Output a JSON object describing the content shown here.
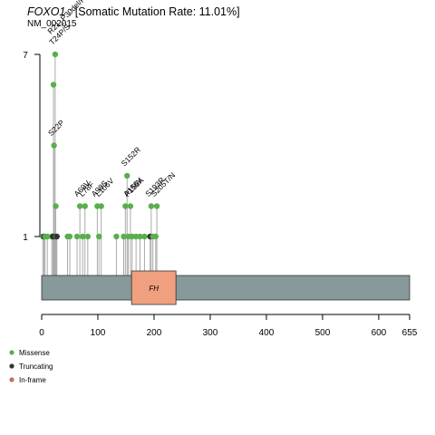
{
  "title": {
    "gene": "FOXO1",
    "rest": " : [Somatic Mutation Rate: 11.01%]",
    "transcript": "NM_002015"
  },
  "legend": [
    {
      "label": "Missense",
      "color": "#5aae4e"
    },
    {
      "label": "Truncating",
      "color": "#333333"
    },
    {
      "label": "In-frame",
      "color": "#c0725a"
    }
  ],
  "chart_data": {
    "type": "lollipop",
    "protein_length": 655,
    "xlim": [
      0,
      655
    ],
    "x_ticks": [
      0,
      100,
      200,
      300,
      400,
      500,
      600,
      655
    ],
    "y_ticks": [
      1,
      7
    ],
    "ylim": [
      0,
      7
    ],
    "domains": [
      {
        "name": "FH",
        "start": 160,
        "end": 239,
        "color": "#f0a07e"
      }
    ],
    "backbone_color": "#87999a",
    "mutations": [
      {
        "pos": 2,
        "count": 1,
        "type": "missense"
      },
      {
        "pos": 4,
        "count": 1,
        "type": "truncating"
      },
      {
        "pos": 6,
        "count": 1,
        "type": "missense"
      },
      {
        "pos": 10,
        "count": 1,
        "type": "missense"
      },
      {
        "pos": 18,
        "count": 1,
        "type": "missense"
      },
      {
        "pos": 20,
        "count": 1,
        "type": "truncating"
      },
      {
        "pos": 21,
        "count": 6,
        "type": "missense"
      },
      {
        "pos": 22,
        "count": 4,
        "type": "missense",
        "label": "S22P"
      },
      {
        "pos": 23,
        "count": 1,
        "type": "truncating"
      },
      {
        "pos": 24,
        "count": 7,
        "type": "missense",
        "label": "T24P/S"
      },
      {
        "pos": 25,
        "count": 2,
        "type": "missense"
      },
      {
        "pos": 26,
        "count": 1,
        "type": "missense"
      },
      {
        "pos": 27,
        "count": 1,
        "type": "truncating"
      },
      {
        "pos": 46,
        "count": 1,
        "type": "missense"
      },
      {
        "pos": 50,
        "count": 1,
        "type": "missense"
      },
      {
        "pos": 63,
        "count": 1,
        "type": "missense"
      },
      {
        "pos": 68,
        "count": 2,
        "type": "missense",
        "label": "A69V"
      },
      {
        "pos": 73,
        "count": 1,
        "type": "missense"
      },
      {
        "pos": 77,
        "count": 2,
        "type": "missense",
        "label": "L78F"
      },
      {
        "pos": 82,
        "count": 1,
        "type": "missense"
      },
      {
        "pos": 99,
        "count": 2,
        "type": "missense",
        "label": "A98S"
      },
      {
        "pos": 102,
        "count": 1,
        "type": "missense"
      },
      {
        "pos": 106,
        "count": 2,
        "type": "missense",
        "label": "L106V"
      },
      {
        "pos": 133,
        "count": 1,
        "type": "missense"
      },
      {
        "pos": 146,
        "count": 1,
        "type": "missense"
      },
      {
        "pos": 149,
        "count": 2,
        "type": "missense"
      },
      {
        "pos": 152,
        "count": 3,
        "type": "missense",
        "label": "S152R"
      },
      {
        "pos": 154,
        "count": 1,
        "type": "missense"
      },
      {
        "pos": 158,
        "count": 2,
        "type": "missense",
        "label": "P159A"
      },
      {
        "pos": 161,
        "count": 1,
        "type": "missense"
      },
      {
        "pos": 168,
        "count": 1,
        "type": "missense"
      },
      {
        "pos": 175,
        "count": 1,
        "type": "missense"
      },
      {
        "pos": 183,
        "count": 1,
        "type": "missense"
      },
      {
        "pos": 193,
        "count": 1,
        "type": "truncating"
      },
      {
        "pos": 195,
        "count": 2,
        "type": "missense",
        "label": "S193R"
      },
      {
        "pos": 198,
        "count": 1,
        "type": "missense"
      },
      {
        "pos": 203,
        "count": 1,
        "type": "missense"
      },
      {
        "pos": 205,
        "count": 2,
        "type": "missense",
        "label": "S205T/N"
      }
    ],
    "extra_labels": [
      {
        "text": "R21_P30del/P/H/G",
        "pos": 21,
        "count": 7
      },
      {
        "text": "A156V",
        "pos": 156,
        "count": 2
      }
    ]
  }
}
